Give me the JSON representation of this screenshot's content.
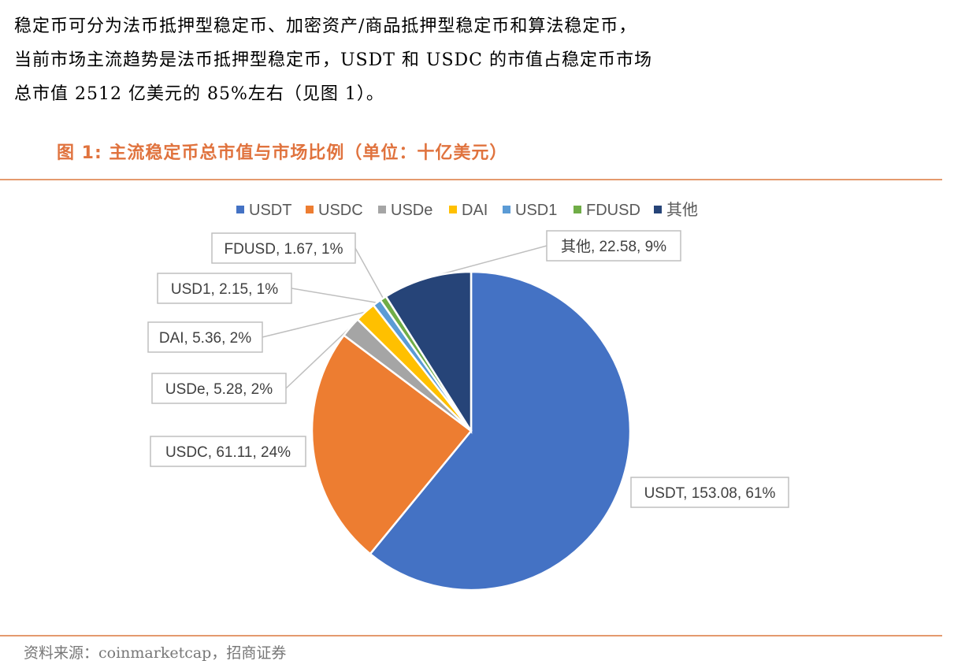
{
  "paragraph": {
    "line1": "稳定币可分为法币抵押型稳定币、加密资产/商品抵押型稳定币和算法稳定币，",
    "line2": "当前市场主流趋势是法币抵押型稳定币，USDT 和 USDC 的市值占稳定币市场",
    "line3": "总市值 2512 亿美元的 85%左右（见图 1）。"
  },
  "figure": {
    "title": "图 1:   主流稳定币总市值与市场比例（单位：十亿美元）",
    "source": "资料来源：coinmarketcap，招商证券"
  },
  "chart_data": {
    "type": "pie",
    "title": "主流稳定币总市值与市场比例（单位：十亿美元）",
    "legend_position": "top",
    "slices": [
      {
        "name": "USDT",
        "value": 153.08,
        "percent": "61%",
        "label": "USDT, 153.08, 61%",
        "color": "#4472C4"
      },
      {
        "name": "USDC",
        "value": 61.11,
        "percent": "24%",
        "label": "USDC, 61.11, 24%",
        "color": "#ED7D31"
      },
      {
        "name": "USDe",
        "value": 5.28,
        "percent": "2%",
        "label": "USDe, 5.28, 2%",
        "color": "#A5A5A5"
      },
      {
        "name": "DAI",
        "value": 5.36,
        "percent": "2%",
        "label": "DAI, 5.36, 2%",
        "color": "#FFC000"
      },
      {
        "name": "USD1",
        "value": 2.15,
        "percent": "1%",
        "label": "USD1, 2.15, 1%",
        "color": "#5B9BD5"
      },
      {
        "name": "FDUSD",
        "value": 1.67,
        "percent": "1%",
        "label": "FDUSD, 1.67, 1%",
        "color": "#70AD47"
      },
      {
        "name": "其他",
        "value": 22.58,
        "percent": "9%",
        "label": "其他, 22.58, 9%",
        "color": "#264478"
      }
    ]
  }
}
